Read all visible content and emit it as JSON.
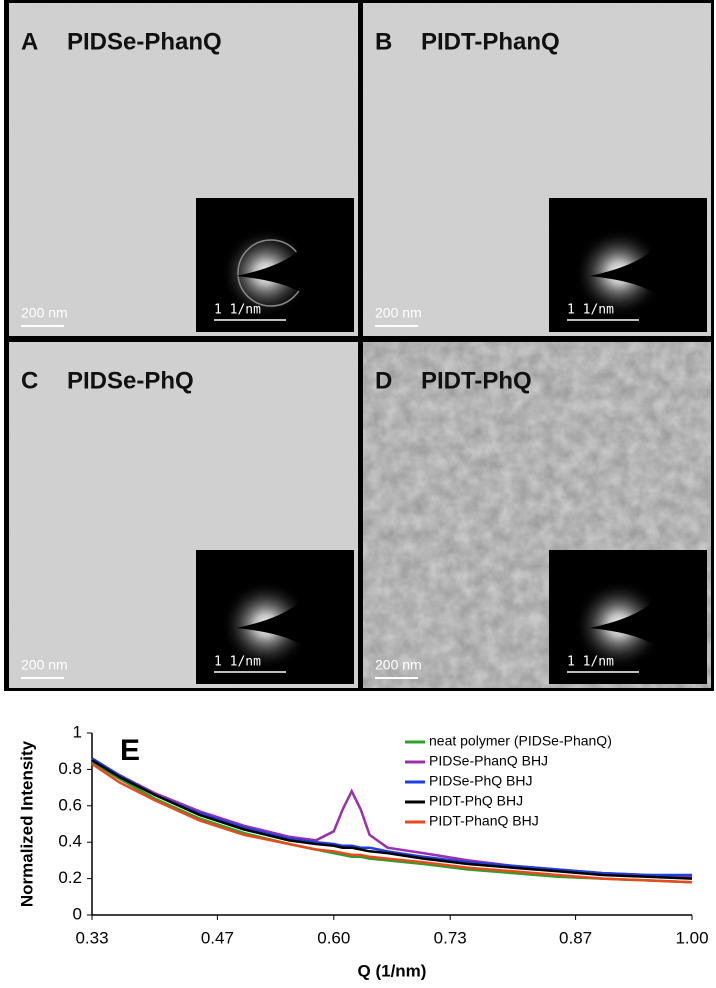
{
  "panels": [
    {
      "letter": "A",
      "name": "PIDSe-PhanQ",
      "scale_bar": "200 nm",
      "inset_scale": "1 1/nm"
    },
    {
      "letter": "B",
      "name": "PIDT-PhanQ",
      "scale_bar": "200 nm",
      "inset_scale": "1 1/nm"
    },
    {
      "letter": "C",
      "name": "PIDSe-PhQ",
      "scale_bar": "200 nm",
      "inset_scale": "1 1/nm"
    },
    {
      "letter": "D",
      "name": "PIDT-PhQ",
      "scale_bar": "200 nm",
      "inset_scale": "1 1/nm"
    }
  ],
  "chart_data": {
    "type": "line",
    "annotation": "E",
    "xlabel": "Q (1/nm)",
    "ylabel": "Normalized Intensity",
    "x": [
      0.33,
      0.36,
      0.4,
      0.45,
      0.5,
      0.55,
      0.58,
      0.6,
      0.61,
      0.62,
      0.63,
      0.64,
      0.66,
      0.7,
      0.75,
      0.8,
      0.85,
      0.9,
      0.95,
      1.0
    ],
    "series": [
      {
        "name": "neat polymer (PIDSe-PhanQ)",
        "color": "#2ca02c",
        "values": [
          0.84,
          0.75,
          0.64,
          0.53,
          0.45,
          0.39,
          0.36,
          0.34,
          0.33,
          0.32,
          0.32,
          0.31,
          0.3,
          0.28,
          0.25,
          0.23,
          0.21,
          0.2,
          0.19,
          0.18
        ]
      },
      {
        "name": "PIDSe-PhanQ BHJ",
        "color": "#9b2fae",
        "values": [
          0.86,
          0.77,
          0.67,
          0.57,
          0.49,
          0.43,
          0.41,
          0.46,
          0.58,
          0.68,
          0.58,
          0.44,
          0.37,
          0.34,
          0.3,
          0.27,
          0.25,
          0.23,
          0.22,
          0.21
        ]
      },
      {
        "name": "PIDSe-PhQ BHJ",
        "color": "#1f3fe0",
        "values": [
          0.86,
          0.77,
          0.66,
          0.56,
          0.48,
          0.42,
          0.4,
          0.39,
          0.38,
          0.38,
          0.37,
          0.37,
          0.35,
          0.32,
          0.29,
          0.27,
          0.25,
          0.23,
          0.22,
          0.22
        ]
      },
      {
        "name": "PIDT-PhQ BHJ",
        "color": "#000000",
        "values": [
          0.85,
          0.76,
          0.66,
          0.55,
          0.47,
          0.41,
          0.39,
          0.38,
          0.37,
          0.37,
          0.36,
          0.35,
          0.34,
          0.31,
          0.28,
          0.26,
          0.24,
          0.22,
          0.21,
          0.2
        ]
      },
      {
        "name": "PIDT-PhanQ BHJ",
        "color": "#e8491d",
        "values": [
          0.83,
          0.73,
          0.63,
          0.52,
          0.44,
          0.39,
          0.36,
          0.35,
          0.34,
          0.33,
          0.33,
          0.32,
          0.31,
          0.29,
          0.26,
          0.24,
          0.22,
          0.2,
          0.19,
          0.18
        ]
      }
    ],
    "xlim": [
      0.33,
      1.0
    ],
    "xticks": [
      0.33,
      0.47,
      {
        "value": 0.6,
        "label": "0.60"
      },
      0.73,
      0.87,
      {
        "value": 1.0,
        "label": "1.00"
      }
    ],
    "ylim": [
      0,
      1
    ],
    "yticks": [
      0,
      0.2,
      0.4,
      0.6,
      0.8,
      1
    ],
    "grid": false,
    "legend": "upper right"
  }
}
